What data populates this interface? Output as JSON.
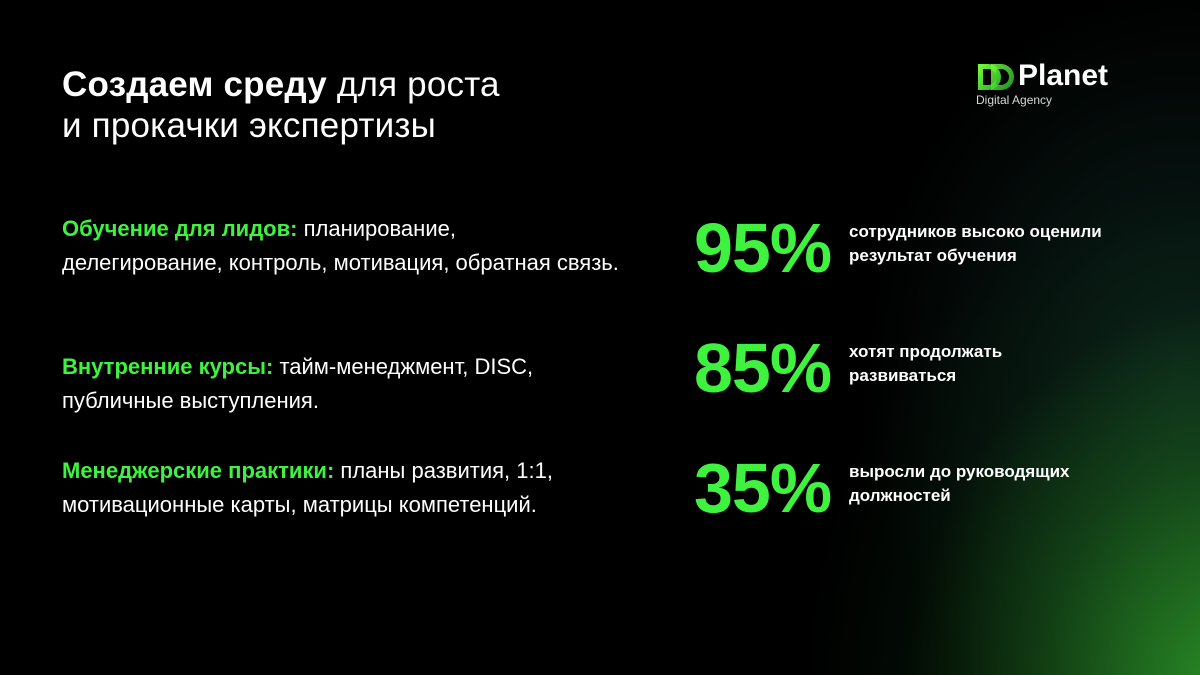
{
  "title": {
    "bold": "Создаем среду",
    "rest_line1": "для роста",
    "line2": "и прокачки экспертизы"
  },
  "logo": {
    "name": "Planet",
    "subtitle": "Digital Agency",
    "mark_letters": "DD"
  },
  "items": [
    {
      "heading": "Обучение для лидов:",
      "text": "планирование, делегирование, контроль, мотивация, обратная связь."
    },
    {
      "heading": "Внутренние курсы:",
      "text": "тайм-менеджмент, DISC, публичные выступления."
    },
    {
      "heading": "Менеджерские практики:",
      "text": "планы развития, 1:1, мотивационные карты, матрицы компетенций."
    }
  ],
  "stats": [
    {
      "value": "95%",
      "line1": "сотрудников высоко оценили",
      "line2": "результат обучения"
    },
    {
      "value": "85%",
      "line1": "хотят продолжать",
      "line2": "развиваться"
    },
    {
      "value": "35%",
      "line1": "выросли до руководящих",
      "line2": "должностей"
    }
  ],
  "colors": {
    "accent": "#3ff23f",
    "background": "#000000",
    "glow": "#2c9628",
    "text": "#ffffff"
  }
}
